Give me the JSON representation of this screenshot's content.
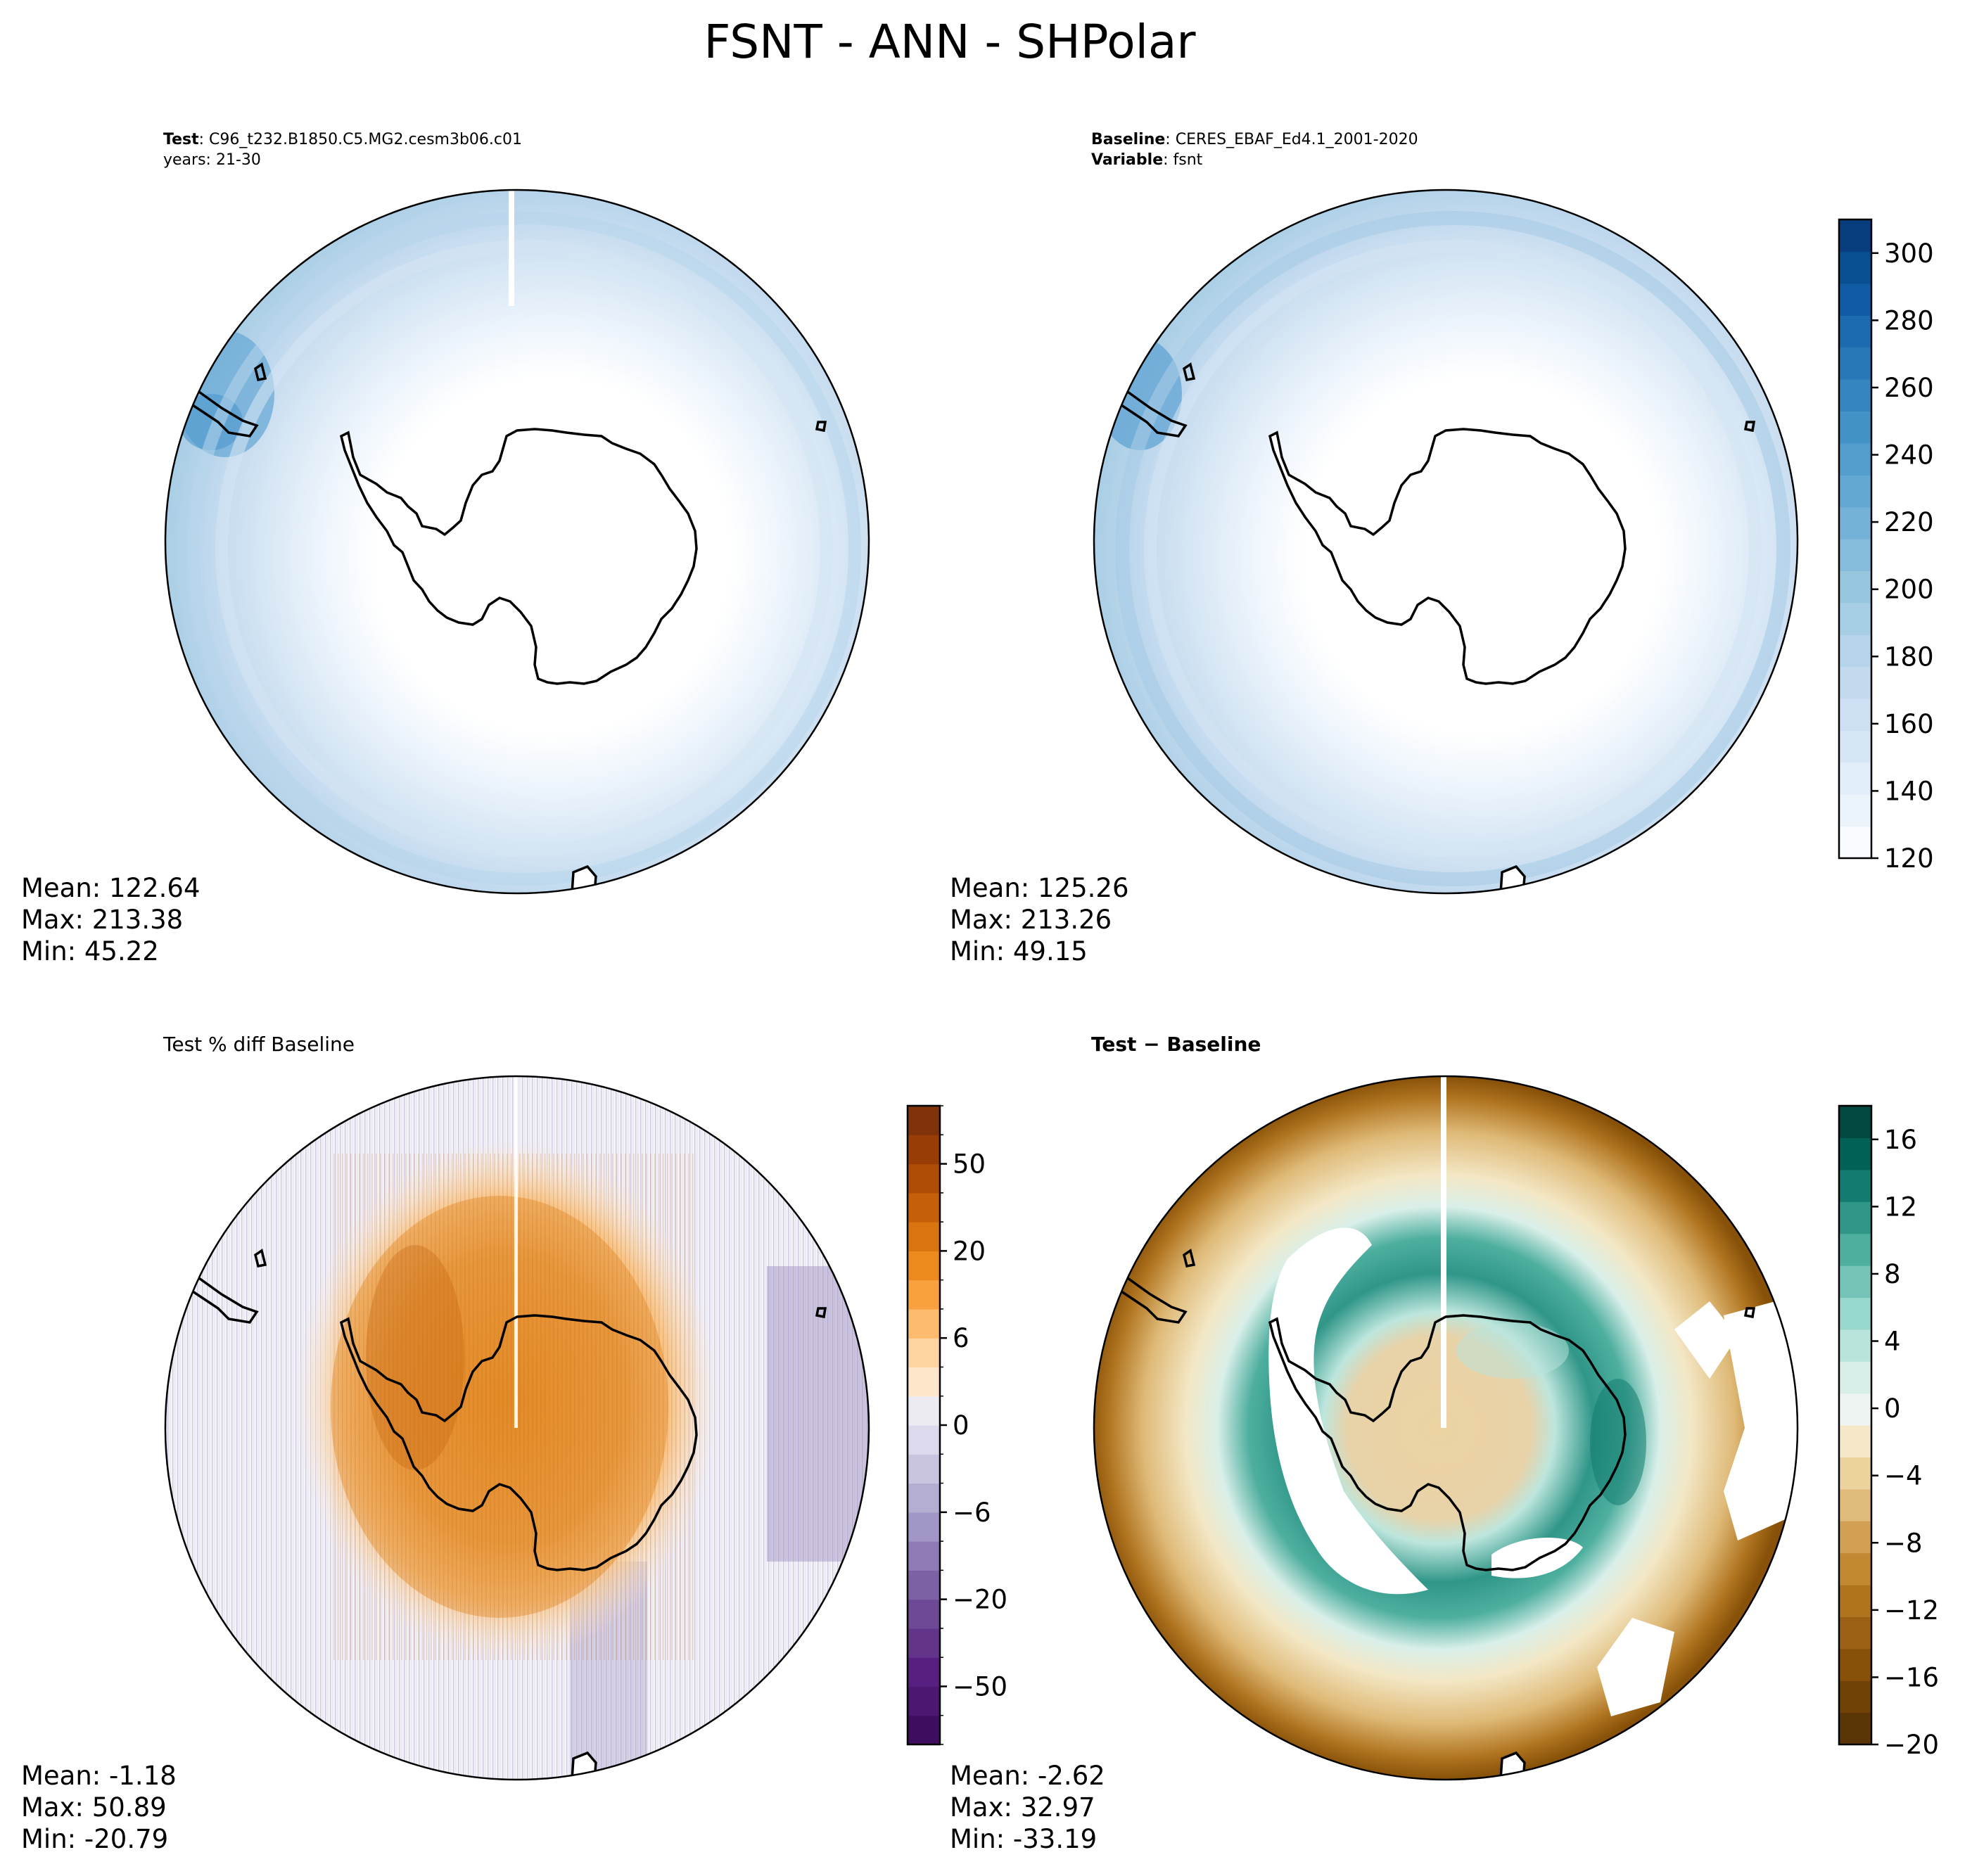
{
  "figure": {
    "title": "FSNT - ANN - SHPolar"
  },
  "panels": [
    {
      "id": "test",
      "header": [
        {
          "bold": "Test",
          "rest": ": C96_t232.B1850.C5.MG2.cesm3b06.c01"
        },
        {
          "bold": "",
          "rest": "years: 21-30"
        }
      ],
      "stats": {
        "mean": "Mean: 122.64",
        "max": "Max: 213.38",
        "min": "Min: 45.22"
      },
      "field": "sequential",
      "peninsula_anomaly": "light"
    },
    {
      "id": "baseline",
      "header": [
        {
          "bold": "Baseline",
          "rest": ": CERES_EBAF_Ed4.1_2001-2020"
        },
        {
          "bold": "Variable",
          "rest": ": fsnt"
        }
      ],
      "stats": {
        "mean": "Mean: 125.26",
        "max": "Max: 213.26",
        "min": "Min: 49.15"
      },
      "field": "sequential"
    },
    {
      "id": "pctdiff",
      "header": [
        {
          "bold": "",
          "rest": "Test % diff Baseline"
        }
      ],
      "stats": {
        "mean": "Mean: -1.18",
        "max": "Max: 50.89",
        "min": "Min: -20.79"
      },
      "field": "pct"
    },
    {
      "id": "diff",
      "header": [
        {
          "bold": "Test − Baseline",
          "rest": ""
        }
      ],
      "stats": {
        "mean": "Mean: -2.62",
        "max": "Max: 32.97",
        "min": "Min: -33.19"
      },
      "field": "diff"
    }
  ],
  "colorbars": [
    {
      "id": "cb-main",
      "range": [
        120,
        310
      ],
      "tick_labels": [
        "120",
        "140",
        "160",
        "180",
        "200",
        "220",
        "240",
        "260",
        "280",
        "300"
      ],
      "tick_values": [
        120,
        140,
        160,
        180,
        200,
        220,
        240,
        260,
        280,
        300
      ],
      "levels": [
        120,
        130,
        140,
        150,
        160,
        170,
        180,
        190,
        200,
        210,
        220,
        230,
        240,
        250,
        260,
        270,
        280,
        290,
        300,
        310
      ],
      "colors": [
        "#f7fbff",
        "#ebf3fb",
        "#e1edf8",
        "#d7e6f5",
        "#cddff2",
        "#c3daee",
        "#b5d4e9",
        "#a6cee4",
        "#97c6df",
        "#86bcdb",
        "#74b2d8",
        "#62a8d3",
        "#529dcc",
        "#4292c6",
        "#3585bf",
        "#2878b8",
        "#1c6aaf",
        "#105ba4",
        "#084f92",
        "#083e7e"
      ]
    },
    {
      "id": "cb-pct",
      "tick_labels": [
        "−50",
        "−20",
        "−6",
        "0",
        "6",
        "20",
        "50"
      ],
      "colors": [
        "#3f0d5f",
        "#4b1771",
        "#571f7f",
        "#62348a",
        "#6e4996",
        "#7c62a4",
        "#8e7ab5",
        "#a196c6",
        "#b5aed3",
        "#c9c4e0",
        "#dcd9ec",
        "#ecebf2",
        "#fde6ca",
        "#fed4a1",
        "#fdbb6e",
        "#f9a13f",
        "#ec8a1d",
        "#da740f",
        "#c55f08",
        "#af4c05",
        "#983d05",
        "#80330a"
      ],
      "levels_count": 22,
      "tick_positions": [
        2,
        5,
        8,
        11,
        14,
        17,
        20
      ]
    },
    {
      "id": "cb-diff",
      "range": [
        -20,
        18
      ],
      "tick_labels": [
        "−20",
        "−16",
        "−12",
        "−8",
        "−4",
        "0",
        "4",
        "8",
        "12",
        "16"
      ],
      "tick_values": [
        -20,
        -16,
        -12,
        -8,
        -4,
        0,
        4,
        8,
        12,
        16
      ],
      "levels": [
        -20,
        -18,
        -16,
        -14,
        -12,
        -10,
        -8,
        -6,
        -4,
        -2,
        0,
        2,
        4,
        6,
        8,
        10,
        12,
        14,
        16,
        18
      ],
      "colors": [
        "#5a3505",
        "#704205",
        "#875109",
        "#9c6014",
        "#b0741f",
        "#c28832",
        "#d1a052",
        "#dfba78",
        "#ebd39e",
        "#f4e8c9",
        "#eef4f1",
        "#d7eee9",
        "#b9e4dc",
        "#98d7cc",
        "#73c4b6",
        "#4eaf9f",
        "#2f9688",
        "#137b6f",
        "#016157",
        "#004840"
      ]
    }
  ]
}
